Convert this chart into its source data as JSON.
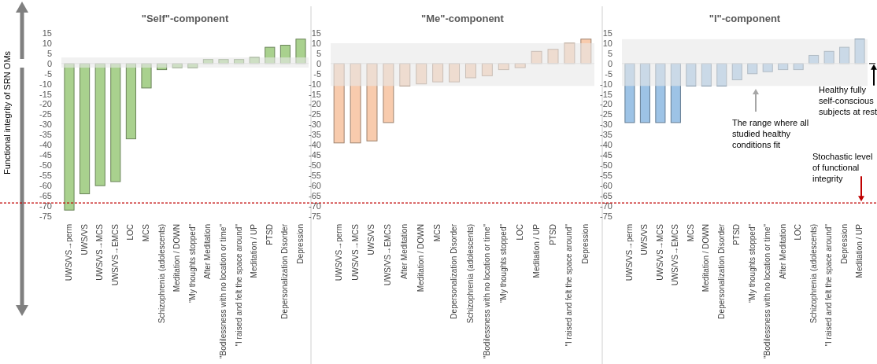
{
  "chart_data": [
    {
      "type": "bar",
      "title": "\"Self\"-component",
      "ylabel": "Functional integrity of SRN OMs",
      "categories": [
        "UWS/VS→perm",
        "UWS/VS",
        "UWS/VS→MCS",
        "UWS/VS→EMCS",
        "LOC",
        "MCS",
        "Schizophrenia (adolescents)",
        "Meditation / DOWN",
        "\"My thoughts stopped\"",
        "After Meditation",
        "\"Bodilessness with no location or time\"",
        "\"I raised and felt the space around\"",
        "Meditation / UP",
        "PTSD",
        "Depersonalization Disorder",
        "Depression"
      ],
      "series": [
        {
          "color": "#a9d18e",
          "values": [
            -72,
            -64,
            -60,
            -58,
            -37,
            -12,
            -3,
            -2,
            -2,
            2,
            2,
            2,
            3,
            8,
            9,
            12
          ]
        }
      ],
      "ylim": [
        -75,
        15
      ],
      "yticks": [
        -75,
        -70,
        -65,
        -60,
        -55,
        -50,
        -45,
        -40,
        -35,
        -30,
        -25,
        -20,
        -15,
        -10,
        -5,
        0,
        5,
        10,
        15
      ],
      "grid": false,
      "bands": [
        {
          "axis": "y",
          "from": -2,
          "to": 3,
          "color": "#e7e7e7"
        }
      ],
      "ref_lines": [
        {
          "axis": "y",
          "value": -68.5,
          "color": "#c00000",
          "line_style": "dashed"
        }
      ]
    },
    {
      "type": "bar",
      "title": "\"Me\"-component",
      "categories": [
        "UWS/VS→perm",
        "UWS/VS→MCS",
        "UWS/VS",
        "UWS/VS→EMCS",
        "After Meditation",
        "Meditation / DOWN",
        "MCS",
        "Depersonalization Disorder",
        "Schizophrenia (adolescents)",
        "\"Bodilessness with no location or time\"",
        "\"My thoughts stopped\"",
        "LOC",
        "Meditation / UP",
        "PTSD",
        "\"I raised and felt the space around\"",
        "Depression"
      ],
      "series": [
        {
          "color": "#f8cbad",
          "values": [
            -39,
            -39,
            -38,
            -29,
            -11,
            -10,
            -9,
            -9,
            -7,
            -6,
            -3,
            -2,
            6,
            7,
            10,
            12
          ]
        }
      ],
      "ylim": [
        -75,
        15
      ],
      "yticks": [
        -75,
        -70,
        -65,
        -60,
        -55,
        -50,
        -45,
        -40,
        -35,
        -30,
        -25,
        -20,
        -15,
        -10,
        -5,
        0,
        5,
        10,
        15
      ],
      "grid": false,
      "bands": [
        {
          "axis": "y",
          "from": -11,
          "to": 10,
          "color": "#e7e7e7"
        }
      ],
      "ref_lines": [
        {
          "axis": "y",
          "value": -68.5,
          "color": "#c00000",
          "line_style": "dashed"
        }
      ]
    },
    {
      "type": "bar",
      "title": "\"I\"-component",
      "categories": [
        "UWS/VS→perm",
        "UWS/VS",
        "UWS/VS→MCS",
        "UWS/VS→EMCS",
        "MCS",
        "Meditation / DOWN",
        "Depersonalization Disorder",
        "PTSD",
        "\"My thoughts stopped\"",
        "\"Bodilessness with no location or time\"",
        "After Meditation",
        "LOC",
        "Schizophrenia (adolescents)",
        "\"I raised and felt the space around\"",
        "Depression",
        "Meditation / UP"
      ],
      "series": [
        {
          "color": "#9dc3e6",
          "values": [
            -29,
            -29,
            -29,
            -29,
            -11,
            -11,
            -11,
            -8,
            -5,
            -4,
            -3,
            -3,
            4,
            6,
            8,
            12
          ]
        }
      ],
      "ylim": [
        -75,
        15
      ],
      "yticks": [
        -75,
        -70,
        -65,
        -60,
        -55,
        -50,
        -45,
        -40,
        -35,
        -30,
        -25,
        -20,
        -15,
        -10,
        -5,
        0,
        5,
        10,
        15
      ],
      "grid": false,
      "bands": [
        {
          "axis": "y",
          "from": -11,
          "to": 12,
          "color": "#e7e7e7"
        }
      ],
      "ref_lines": [
        {
          "axis": "y",
          "value": -68.5,
          "color": "#c00000",
          "line_style": "dashed",
          "label": "Stochastic level of functional integrity"
        }
      ],
      "annotations": [
        "The range where all studied healthy conditions fit",
        "Healthy fully self-conscious subjects at rest"
      ]
    }
  ]
}
